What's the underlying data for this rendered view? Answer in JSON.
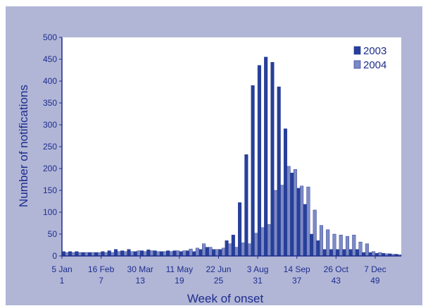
{
  "chart_data": {
    "type": "bar",
    "xlabel": "Week of onset",
    "ylabel": "Number of notifications",
    "ylim": [
      0,
      500
    ],
    "yticks": [
      0,
      50,
      100,
      150,
      200,
      250,
      300,
      350,
      400,
      450,
      500
    ],
    "x_tick_labels": [
      {
        "date": "5 Jan",
        "week": "1"
      },
      {
        "date": "16 Feb",
        "week": "7"
      },
      {
        "date": "30 Mar",
        "week": "13"
      },
      {
        "date": "11 May",
        "week": "19"
      },
      {
        "date": "22 Jun",
        "week": "25"
      },
      {
        "date": "3 Aug",
        "week": "31"
      },
      {
        "date": "14 Sep",
        "week": "37"
      },
      {
        "date": "26 Oct",
        "week": "43"
      },
      {
        "date": "7 Dec",
        "week": "49"
      }
    ],
    "weeks": [
      1,
      2,
      3,
      4,
      5,
      6,
      7,
      8,
      9,
      10,
      11,
      12,
      13,
      14,
      15,
      16,
      17,
      18,
      19,
      20,
      21,
      22,
      23,
      24,
      25,
      26,
      27,
      28,
      29,
      30,
      31,
      32,
      33,
      34,
      35,
      36,
      37,
      38,
      39,
      40,
      41,
      42,
      43,
      44,
      45,
      46,
      47,
      48,
      49,
      50,
      51,
      52
    ],
    "legend_position": "top-right",
    "series": [
      {
        "name": "2003",
        "color": "#26409a",
        "values": [
          10,
          10,
          10,
          8,
          8,
          8,
          10,
          12,
          15,
          12,
          15,
          10,
          12,
          14,
          12,
          10,
          12,
          12,
          10,
          12,
          10,
          15,
          20,
          15,
          15,
          35,
          48,
          122,
          232,
          390,
          436,
          455,
          443,
          387,
          291,
          190,
          155,
          118,
          50,
          35,
          15,
          15,
          15,
          15,
          15,
          15,
          8,
          8,
          6,
          6,
          5,
          4
        ]
      },
      {
        "name": "2004",
        "color": "#7c8ac4",
        "values": [
          8,
          8,
          8,
          8,
          8,
          8,
          8,
          8,
          10,
          10,
          10,
          12,
          10,
          12,
          10,
          10,
          10,
          12,
          12,
          16,
          18,
          28,
          20,
          15,
          18,
          28,
          20,
          30,
          28,
          52,
          65,
          72,
          150,
          162,
          205,
          198,
          160,
          158,
          105,
          70,
          60,
          50,
          48,
          45,
          48,
          32,
          28,
          10,
          8,
          5,
          4,
          3
        ]
      }
    ]
  }
}
